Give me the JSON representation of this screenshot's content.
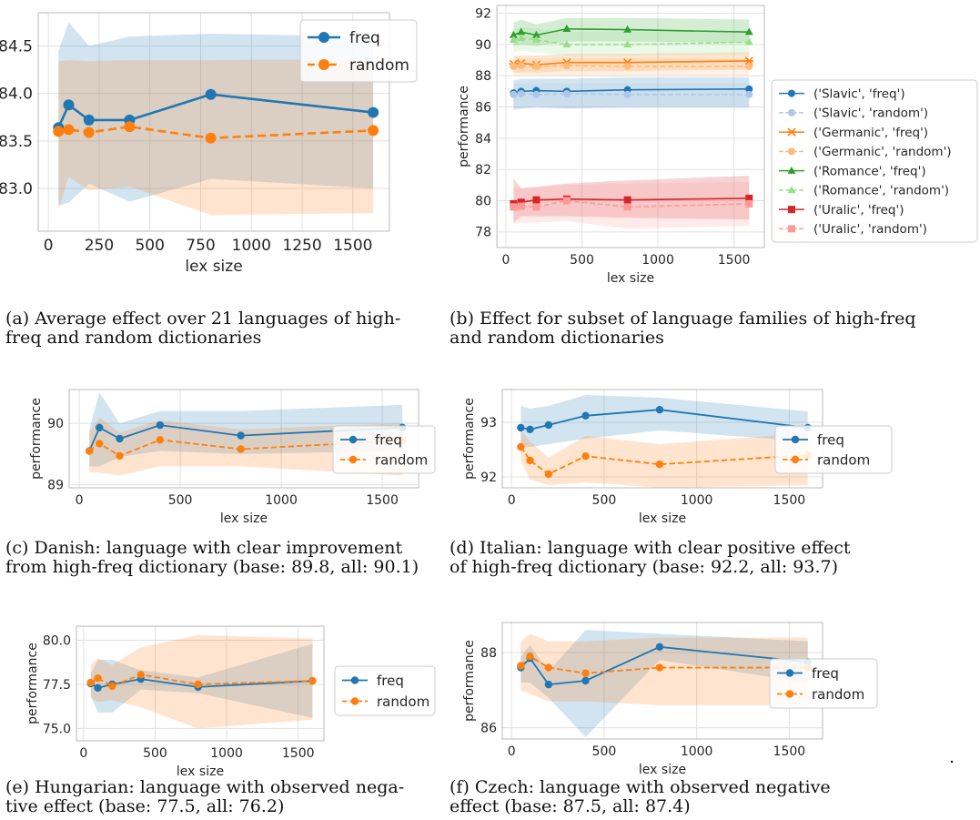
{
  "colors": {
    "freq": "#1f77b4",
    "random": "#ff7f0e",
    "slavic_freq": "#1f77b4",
    "slavic_random": "#aec7e8",
    "germanic_freq": "#ff7f0e",
    "germanic_random": "#ffbb78",
    "romance_freq": "#2ca02c",
    "romance_random": "#98df8a",
    "uralic_freq": "#d62728",
    "uralic_random": "#ff9896",
    "grid": "#e0e0e0",
    "frame": "#bbbbbb"
  },
  "captions": {
    "a": "(a) Average effect over 21 languages of high-\nfreq and random dictionaries",
    "b": "(b) Effect for subset of language families of high-freq\nand random dictionaries",
    "c": "(c) Danish: language with clear improvement\nfrom high-freq dictionary (base: 89.8, all: 90.1)",
    "d": "(d) Italian: language with clear positive effect\nof high-freq dictionary (base: 92.2, all: 93.7)",
    "e": "(e) Hungarian: language with observed nega-\ntive effect (base: 77.5, all: 76.2)",
    "f": "(f) Czech: language with observed negative\neffect (base: 87.5, all: 87.4)"
  },
  "trailing_mark": ".",
  "chart_data": [
    {
      "id": "a",
      "type": "line",
      "xlabel": "lex size",
      "ylabel": "",
      "xlim": [
        -50,
        1680
      ],
      "ylim": [
        82.55,
        84.85
      ],
      "xticks": [
        0,
        250,
        500,
        750,
        1000,
        1250,
        1500
      ],
      "yticks": [
        83.0,
        83.5,
        84.0,
        84.5
      ],
      "ytick_labels": [
        "83.0",
        "83.5",
        "84.0",
        "84.5"
      ],
      "grid": true,
      "legend": "inside top-right",
      "series": [
        {
          "name": "freq",
          "color_key": "freq",
          "marker": "circle",
          "dashed": false,
          "x": [
            50,
            100,
            200,
            400,
            800,
            1600
          ],
          "y": [
            83.64,
            83.88,
            83.72,
            83.72,
            83.99,
            83.8
          ],
          "lower": [
            82.82,
            82.85,
            83.05,
            82.86,
            83.1,
            83.0
          ],
          "upper": [
            84.45,
            84.75,
            84.5,
            84.6,
            84.63,
            84.6
          ]
        },
        {
          "name": "random",
          "color_key": "random",
          "marker": "circle",
          "dashed": true,
          "x": [
            50,
            100,
            200,
            400,
            800,
            1600
          ],
          "y": [
            83.6,
            83.62,
            83.59,
            83.65,
            83.53,
            83.61
          ],
          "lower": [
            82.78,
            83.12,
            82.98,
            83.02,
            82.72,
            82.74
          ],
          "upper": [
            84.34,
            84.35,
            84.34,
            84.35,
            84.35,
            84.36
          ]
        }
      ]
    },
    {
      "id": "b",
      "type": "line",
      "xlabel": "lex size",
      "ylabel": "performance",
      "xlim": [
        -60,
        1700
      ],
      "ylim": [
        77.0,
        92.5
      ],
      "xticks": [
        0,
        500,
        1000,
        1500
      ],
      "yticks": [
        78,
        80,
        82,
        84,
        86,
        88,
        90,
        92
      ],
      "ytick_labels": [
        "78",
        "80",
        "82",
        "84",
        "86",
        "88",
        "90",
        "92"
      ],
      "grid": true,
      "legend": "outside right",
      "series": [
        {
          "name": "('Slavic', 'freq')",
          "color_key": "slavic_freq",
          "marker": "circle",
          "dashed": false,
          "x": [
            50,
            100,
            200,
            400,
            800,
            1600
          ],
          "y": [
            86.9,
            87.0,
            87.05,
            87.0,
            87.1,
            87.15
          ],
          "lower": [
            85.8,
            85.9,
            86.0,
            85.9,
            86.0,
            86.0
          ],
          "upper": [
            87.7,
            87.8,
            87.8,
            87.8,
            87.9,
            87.9
          ]
        },
        {
          "name": "('Slavic', 'random')",
          "color_key": "slavic_random",
          "marker": "circle",
          "dashed": true,
          "x": [
            50,
            100,
            200,
            400,
            800,
            1600
          ],
          "y": [
            86.8,
            86.85,
            86.8,
            86.85,
            86.8,
            86.8
          ],
          "lower": [
            85.9,
            85.9,
            85.9,
            85.9,
            85.9,
            85.9
          ],
          "upper": [
            87.5,
            87.5,
            87.5,
            87.5,
            87.5,
            87.5
          ]
        },
        {
          "name": "('Germanic', 'freq')",
          "color_key": "germanic_freq",
          "marker": "x",
          "dashed": false,
          "x": [
            50,
            100,
            200,
            400,
            800,
            1600
          ],
          "y": [
            88.75,
            88.8,
            88.7,
            88.85,
            88.85,
            88.95
          ],
          "lower": [
            88.2,
            88.2,
            88.2,
            88.3,
            88.3,
            88.4
          ],
          "upper": [
            89.3,
            89.3,
            89.3,
            89.4,
            89.4,
            89.5
          ]
        },
        {
          "name": "('Germanic', 'random')",
          "color_key": "germanic_random",
          "marker": "circle",
          "dashed": true,
          "x": [
            50,
            100,
            200,
            400,
            800,
            1600
          ],
          "y": [
            88.6,
            88.65,
            88.6,
            88.65,
            88.6,
            88.6
          ],
          "lower": [
            88.0,
            88.0,
            88.0,
            88.0,
            88.0,
            88.0
          ],
          "upper": [
            89.1,
            89.1,
            89.1,
            89.1,
            89.1,
            89.1
          ]
        },
        {
          "name": "('Romance', 'freq')",
          "color_key": "romance_freq",
          "marker": "triangle",
          "dashed": false,
          "x": [
            50,
            100,
            200,
            400,
            800,
            1600
          ],
          "y": [
            90.6,
            90.8,
            90.6,
            91.0,
            90.95,
            90.8
          ],
          "lower": [
            89.9,
            90.0,
            89.9,
            90.2,
            90.2,
            90.1
          ],
          "upper": [
            91.4,
            91.6,
            91.3,
            91.7,
            91.7,
            91.6
          ]
        },
        {
          "name": "('Romance', 'random')",
          "color_key": "romance_random",
          "marker": "triangle",
          "dashed": true,
          "x": [
            50,
            100,
            200,
            400,
            800,
            1600
          ],
          "y": [
            90.3,
            90.4,
            90.3,
            90.0,
            90.0,
            90.15
          ],
          "lower": [
            89.5,
            89.6,
            89.5,
            89.3,
            89.3,
            89.4
          ],
          "upper": [
            91.0,
            91.1,
            91.0,
            90.8,
            90.8,
            90.9
          ]
        },
        {
          "name": "('Uralic', 'freq')",
          "color_key": "uralic_freq",
          "marker": "square",
          "dashed": false,
          "x": [
            50,
            100,
            200,
            400,
            800,
            1600
          ],
          "y": [
            79.8,
            79.9,
            80.05,
            80.1,
            80.05,
            80.15
          ],
          "lower": [
            78.6,
            79.0,
            79.0,
            79.0,
            78.9,
            78.8
          ],
          "upper": [
            81.4,
            80.8,
            80.9,
            81.1,
            81.3,
            81.6
          ]
        },
        {
          "name": "('Uralic', 'random')",
          "color_key": "uralic_random",
          "marker": "square",
          "dashed": true,
          "x": [
            50,
            100,
            200,
            400,
            800,
            1600
          ],
          "y": [
            79.6,
            79.65,
            79.6,
            80.0,
            79.6,
            79.8
          ],
          "lower": [
            78.5,
            78.6,
            78.6,
            78.7,
            78.2,
            78.4
          ],
          "upper": [
            80.8,
            80.8,
            80.8,
            81.0,
            81.1,
            81.2
          ]
        }
      ]
    },
    {
      "id": "c",
      "type": "line",
      "xlabel": "lex size",
      "ylabel": "performance",
      "xlim": [
        -50,
        1680
      ],
      "ylim": [
        88.95,
        90.55
      ],
      "xticks": [
        0,
        500,
        1000,
        1500
      ],
      "yticks": [
        89,
        90
      ],
      "ytick_labels": [
        "89",
        "90"
      ],
      "grid": true,
      "legend": "outside right",
      "series": [
        {
          "name": "freq",
          "color_key": "freq",
          "marker": "circle",
          "dashed": false,
          "x": [
            50,
            100,
            200,
            400,
            800,
            1600
          ],
          "y": [
            89.55,
            89.93,
            89.75,
            89.97,
            89.8,
            89.93
          ],
          "lower": [
            89.3,
            89.3,
            89.45,
            89.55,
            89.5,
            89.55
          ],
          "upper": [
            89.9,
            90.5,
            90.0,
            90.2,
            90.2,
            90.3
          ]
        },
        {
          "name": "random",
          "color_key": "random",
          "marker": "circle",
          "dashed": true,
          "x": [
            50,
            100,
            200,
            400,
            800,
            1600
          ],
          "y": [
            89.55,
            89.67,
            89.47,
            89.73,
            89.58,
            89.72
          ],
          "lower": [
            89.2,
            89.2,
            89.15,
            89.3,
            89.3,
            89.15
          ],
          "upper": [
            89.85,
            90.1,
            89.85,
            90.05,
            89.9,
            90.0
          ]
        }
      ]
    },
    {
      "id": "d",
      "type": "line",
      "xlabel": "lex size",
      "ylabel": "performance",
      "xlim": [
        -50,
        1680
      ],
      "ylim": [
        91.8,
        93.6
      ],
      "xticks": [
        0,
        500,
        1000,
        1500
      ],
      "yticks": [
        92,
        93
      ],
      "ytick_labels": [
        "92",
        "93"
      ],
      "grid": true,
      "legend": "outside right",
      "series": [
        {
          "name": "freq",
          "color_key": "freq",
          "marker": "circle",
          "dashed": false,
          "x": [
            50,
            100,
            200,
            400,
            800,
            1600
          ],
          "y": [
            92.9,
            92.87,
            92.95,
            93.12,
            93.23,
            92.9
          ],
          "lower": [
            92.55,
            92.55,
            92.6,
            92.7,
            92.85,
            92.65
          ],
          "upper": [
            93.3,
            93.25,
            93.3,
            93.5,
            93.45,
            93.2
          ]
        },
        {
          "name": "random",
          "color_key": "random",
          "marker": "circle",
          "dashed": true,
          "x": [
            50,
            100,
            200,
            400,
            800,
            1600
          ],
          "y": [
            92.55,
            92.3,
            92.05,
            92.38,
            92.23,
            92.4
          ],
          "lower": [
            92.3,
            91.95,
            91.85,
            91.9,
            91.8,
            91.85
          ],
          "upper": [
            92.85,
            92.65,
            92.35,
            92.75,
            92.6,
            92.8
          ]
        }
      ]
    },
    {
      "id": "e",
      "type": "line",
      "xlabel": "lex size",
      "ylabel": "performance",
      "xlim": [
        -50,
        1680
      ],
      "ylim": [
        74.3,
        80.8
      ],
      "xticks": [
        0,
        500,
        1000,
        1500
      ],
      "yticks": [
        75.0,
        77.5,
        80.0
      ],
      "ytick_labels": [
        "75.0",
        "77.5",
        "80.0"
      ],
      "grid": true,
      "legend": "outside right",
      "series": [
        {
          "name": "freq",
          "color_key": "freq",
          "marker": "circle",
          "dashed": false,
          "x": [
            50,
            100,
            200,
            400,
            800,
            1600
          ],
          "y": [
            77.55,
            77.3,
            77.5,
            77.8,
            77.35,
            77.7
          ],
          "lower": [
            76.9,
            75.9,
            75.9,
            77.2,
            77.0,
            75.6
          ],
          "upper": [
            78.1,
            78.9,
            78.9,
            78.3,
            77.9,
            79.8
          ]
        },
        {
          "name": "random",
          "color_key": "random",
          "marker": "circle",
          "dashed": true,
          "x": [
            50,
            100,
            200,
            400,
            800,
            1600
          ],
          "y": [
            77.6,
            77.85,
            77.4,
            78.05,
            77.5,
            77.7
          ],
          "lower": [
            76.7,
            76.5,
            76.6,
            76.2,
            75.0,
            75.5
          ],
          "upper": [
            78.6,
            79.0,
            78.6,
            79.6,
            80.3,
            80.1
          ]
        }
      ]
    },
    {
      "id": "f",
      "type": "line",
      "xlabel": "lex size",
      "ylabel": "performance",
      "xlim": [
        -50,
        1680
      ],
      "ylim": [
        85.7,
        88.8
      ],
      "xticks": [
        0,
        500,
        1000,
        1500
      ],
      "yticks": [
        86,
        88
      ],
      "ytick_labels": [
        "86",
        "88"
      ],
      "grid": true,
      "legend": "outside right",
      "series": [
        {
          "name": "freq",
          "color_key": "freq",
          "marker": "circle",
          "dashed": false,
          "x": [
            50,
            100,
            200,
            400,
            800,
            1600
          ],
          "y": [
            87.6,
            87.85,
            87.15,
            87.25,
            88.15,
            87.75
          ],
          "lower": [
            87.2,
            87.2,
            86.8,
            85.75,
            87.8,
            87.2
          ],
          "upper": [
            87.9,
            88.2,
            87.5,
            88.6,
            88.5,
            88.3
          ]
        },
        {
          "name": "random",
          "color_key": "random",
          "marker": "circle",
          "dashed": true,
          "x": [
            50,
            100,
            200,
            400,
            800,
            1600
          ],
          "y": [
            87.65,
            87.9,
            87.6,
            87.45,
            87.6,
            87.6
          ],
          "lower": [
            87.0,
            86.9,
            86.7,
            86.7,
            86.6,
            86.6
          ],
          "upper": [
            88.3,
            88.5,
            88.3,
            88.3,
            88.4,
            88.4
          ]
        }
      ]
    }
  ]
}
